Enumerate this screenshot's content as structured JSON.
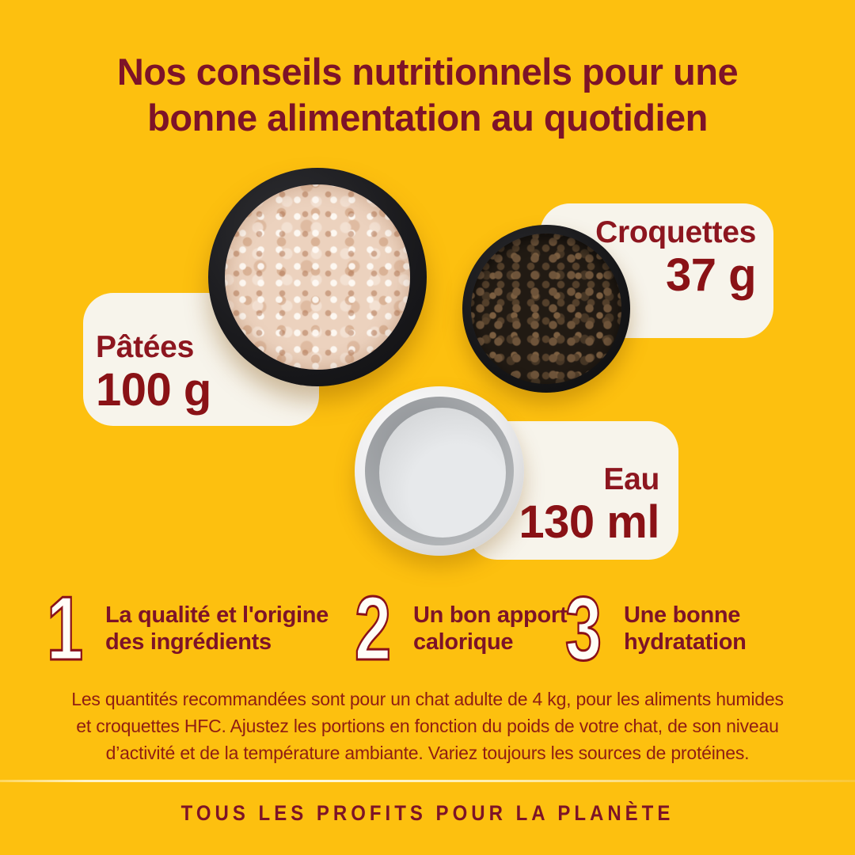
{
  "colors": {
    "background": "#FDC00F",
    "maroon": "#7D1328",
    "red": "#8A1216",
    "card_bg": "#F7F4EB",
    "number_fill": "#FFFDF7"
  },
  "title": "Nos conseils nutritionnels pour une\nbonne alimentation au quotidien",
  "cards": {
    "pate": {
      "label": "Pâtées",
      "amount": "100 g"
    },
    "croquettes": {
      "label": "Croquettes",
      "amount": "37 g"
    },
    "eau": {
      "label": "Eau",
      "amount": "130 ml"
    }
  },
  "bowls": {
    "pate": "pate-bowl-photo",
    "croquettes": "kibble-bowl-photo",
    "water": "water-bowl-photo"
  },
  "points": [
    {
      "number": "1",
      "label": "La qualité et l'origine\ndes ingrédients"
    },
    {
      "number": "2",
      "label": "Un bon apport\ncalorique"
    },
    {
      "number": "3",
      "label": "Une bonne\nhydratation"
    }
  ],
  "note": "Les quantités recommandées sont pour un chat adulte de 4 kg, pour les aliments humides\net croquettes HFC. Ajustez les portions en fonction du poids de votre chat, de son niveau\nd’activité et de la température ambiante. Variez toujours les sources de protéines.",
  "footer": "TOUS LES PROFITS POUR LA PLANÈTE"
}
